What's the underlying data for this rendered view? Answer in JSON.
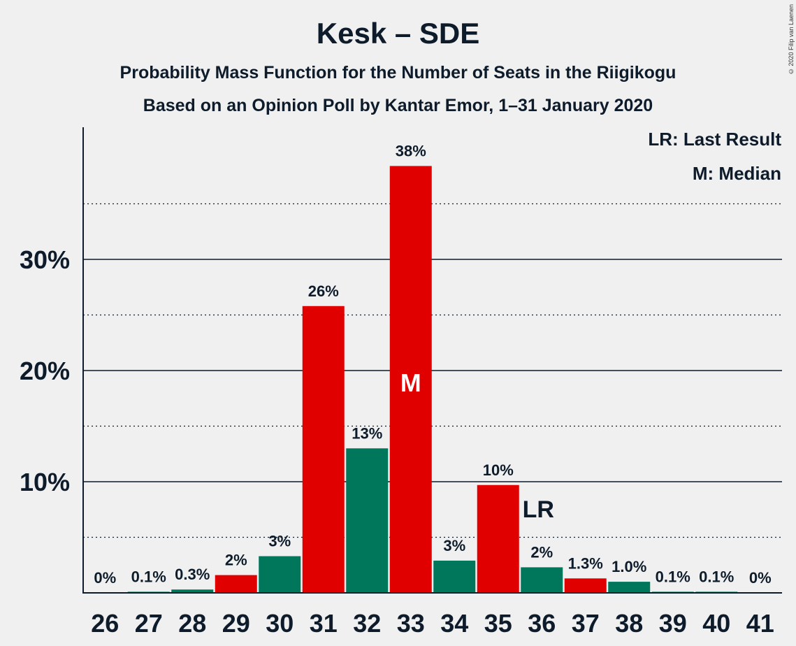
{
  "title": "Kesk – SDE",
  "subtitle1": "Probability Mass Function for the Number of Seats in the Riigikogu",
  "subtitle2": "Based on an Opinion Poll by Kantar Emor, 1–31 January 2020",
  "legend": {
    "lr": "LR: Last Result",
    "m": "M: Median"
  },
  "copyright": "© 2020 Filip van Laenen",
  "colors": {
    "red": "#e00000",
    "green": "#00765a",
    "text": "#0d1b2a",
    "background": "#f0f0f0"
  },
  "chart_data": {
    "type": "bar",
    "categories": [
      "26",
      "27",
      "28",
      "29",
      "30",
      "31",
      "32",
      "33",
      "34",
      "35",
      "36",
      "37",
      "38",
      "39",
      "40",
      "41"
    ],
    "values": [
      0,
      0.1,
      0.3,
      1.6,
      3.3,
      25.8,
      13.0,
      38.4,
      2.9,
      9.7,
      2.3,
      1.3,
      1.0,
      0.1,
      0.1,
      0
    ],
    "labels": [
      "0%",
      "0.1%",
      "0.3%",
      "2%",
      "3%",
      "26%",
      "13%",
      "38%",
      "3%",
      "10%",
      "2%",
      "1.3%",
      "1.0%",
      "0.1%",
      "0.1%",
      "0%"
    ],
    "bar_colors": [
      "green",
      "green",
      "green",
      "red",
      "green",
      "red",
      "green",
      "red",
      "green",
      "red",
      "green",
      "red",
      "green",
      "green",
      "green",
      "green"
    ],
    "yticks": [
      10,
      20,
      30
    ],
    "ytick_labels": [
      "10%",
      "20%",
      "30%"
    ],
    "minor_gridlines": [
      5,
      15,
      25,
      35
    ],
    "ylim": [
      0,
      42
    ],
    "median_category": "33",
    "median_marker": "M",
    "last_result_category": "36",
    "last_result_marker": "LR"
  }
}
